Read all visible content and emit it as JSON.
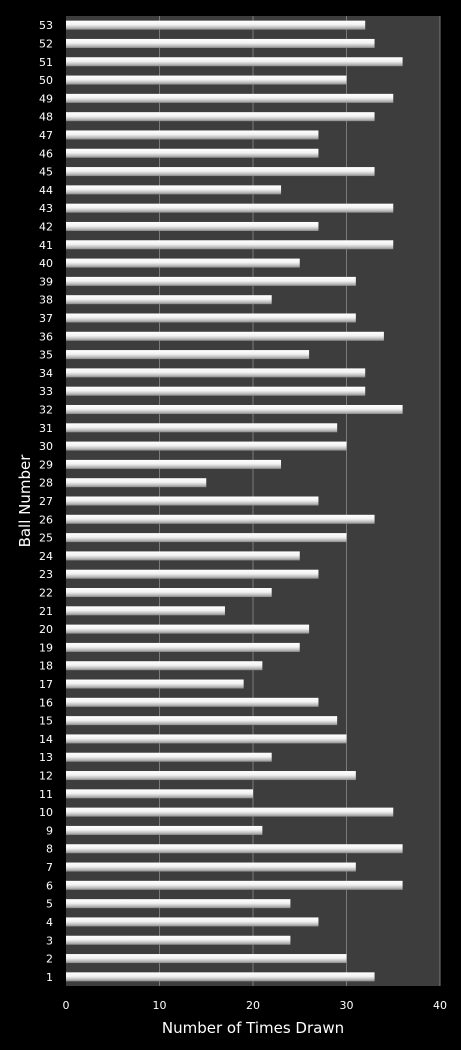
{
  "chart_data": {
    "type": "bar",
    "orientation": "horizontal",
    "xlabel": "Number of Times Drawn",
    "ylabel": "Ball Number",
    "xlim": [
      0,
      40
    ],
    "x_ticks": [
      0,
      10,
      20,
      30,
      40
    ],
    "grid": "vertical",
    "legend": "none",
    "categories": [
      "1",
      "2",
      "3",
      "4",
      "5",
      "6",
      "7",
      "8",
      "9",
      "10",
      "11",
      "12",
      "13",
      "14",
      "15",
      "16",
      "17",
      "18",
      "19",
      "20",
      "21",
      "22",
      "23",
      "24",
      "25",
      "26",
      "27",
      "28",
      "29",
      "30",
      "31",
      "32",
      "33",
      "34",
      "35",
      "36",
      "37",
      "38",
      "39",
      "40",
      "41",
      "42",
      "43",
      "44",
      "45",
      "46",
      "47",
      "48",
      "49",
      "50",
      "51",
      "52",
      "53"
    ],
    "values": [
      33,
      30,
      24,
      27,
      24,
      36,
      31,
      36,
      21,
      35,
      20,
      31,
      22,
      30,
      29,
      27,
      19,
      21,
      25,
      26,
      17,
      22,
      27,
      25,
      30,
      33,
      27,
      15,
      23,
      30,
      29,
      36,
      32,
      32,
      26,
      34,
      31,
      22,
      31,
      25,
      35,
      27,
      35,
      23,
      33,
      27,
      27,
      33,
      35,
      30,
      36,
      33,
      32
    ]
  },
  "colors": {
    "background": "#000000",
    "plot_area": "#3d3d3d",
    "bar": "#e6e6e6",
    "gridline": "#7a7a7a",
    "text": "#ffffff"
  }
}
